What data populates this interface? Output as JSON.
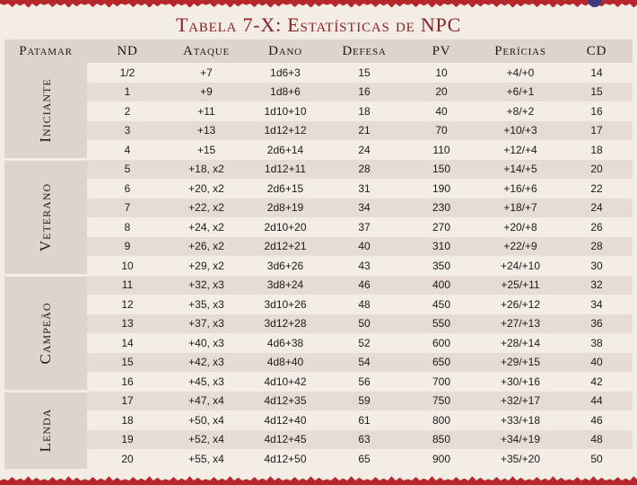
{
  "title": "Tabela 7-X: Estatísticas de NPC",
  "columns": [
    "Patamar",
    "ND",
    "Ataque",
    "Dano",
    "Defesa",
    "PV",
    "Perícias",
    "CD"
  ],
  "tiers": [
    {
      "name": "Iniciante",
      "rows": [
        [
          "1/2",
          "+7",
          "1d6+3",
          "15",
          "10",
          "+4/+0",
          "14"
        ],
        [
          "1",
          "+9",
          "1d8+6",
          "16",
          "20",
          "+6/+1",
          "15"
        ],
        [
          "2",
          "+11",
          "1d10+10",
          "18",
          "40",
          "+8/+2",
          "16"
        ],
        [
          "3",
          "+13",
          "1d12+12",
          "21",
          "70",
          "+10/+3",
          "17"
        ],
        [
          "4",
          "+15",
          "2d6+14",
          "24",
          "110",
          "+12/+4",
          "18"
        ]
      ]
    },
    {
      "name": "Veterano",
      "rows": [
        [
          "5",
          "+18, x2",
          "1d12+11",
          "28",
          "150",
          "+14/+5",
          "20"
        ],
        [
          "6",
          "+20, x2",
          "2d6+15",
          "31",
          "190",
          "+16/+6",
          "22"
        ],
        [
          "7",
          "+22, x2",
          "2d8+19",
          "34",
          "230",
          "+18/+7",
          "24"
        ],
        [
          "8",
          "+24, x2",
          "2d10+20",
          "37",
          "270",
          "+20/+8",
          "26"
        ],
        [
          "9",
          "+26, x2",
          "2d12+21",
          "40",
          "310",
          "+22/+9",
          "28"
        ],
        [
          "10",
          "+29, x2",
          "3d6+26",
          "43",
          "350",
          "+24/+10",
          "30"
        ]
      ]
    },
    {
      "name": "Campeão",
      "rows": [
        [
          "11",
          "+32, x3",
          "3d8+24",
          "46",
          "400",
          "+25/+11",
          "32"
        ],
        [
          "12",
          "+35, x3",
          "3d10+26",
          "48",
          "450",
          "+26/+12",
          "34"
        ],
        [
          "13",
          "+37, x3",
          "3d12+28",
          "50",
          "550",
          "+27/+13",
          "36"
        ],
        [
          "14",
          "+40, x3",
          "4d6+38",
          "52",
          "600",
          "+28/+14",
          "38"
        ],
        [
          "15",
          "+42, x3",
          "4d8+40",
          "54",
          "650",
          "+29/+15",
          "40"
        ],
        [
          "16",
          "+45, x3",
          "4d10+42",
          "56",
          "700",
          "+30/+16",
          "42"
        ]
      ]
    },
    {
      "name": "Lenda",
      "rows": [
        [
          "17",
          "+47, x4",
          "4d12+35",
          "59",
          "750",
          "+32/+17",
          "44"
        ],
        [
          "18",
          "+50, x4",
          "4d12+40",
          "61",
          "800",
          "+33/+18",
          "46"
        ],
        [
          "19",
          "+52, x4",
          "4d12+45",
          "63",
          "850",
          "+34/+19",
          "48"
        ],
        [
          "20",
          "+55, x4",
          "4d12+50",
          "65",
          "900",
          "+35/+20",
          "50"
        ]
      ]
    }
  ]
}
